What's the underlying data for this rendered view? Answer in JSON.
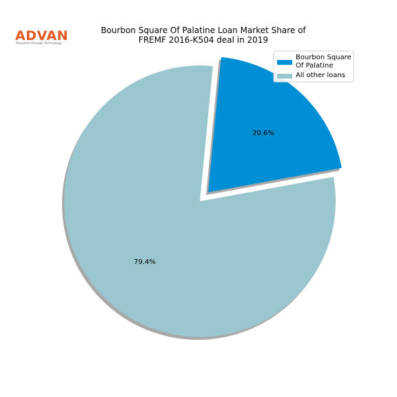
{
  "logo": {
    "name": "ADVAN",
    "tagline": "Research through Technology"
  },
  "chart_data": {
    "type": "pie",
    "title": "Bourbon Square Of Palatine Loan Market Share of\nFREMF 2016-K504 deal in 2019",
    "categories": [
      "Bourbon Square\nOf Palatine",
      "All other loans"
    ],
    "values": [
      20.6,
      79.4
    ],
    "value_labels": [
      "20.6%",
      "79.4%"
    ],
    "colors": [
      "#008fd5",
      "#99c6cf"
    ],
    "explode": [
      true,
      false
    ],
    "shadow": true,
    "legend": "upper right"
  }
}
